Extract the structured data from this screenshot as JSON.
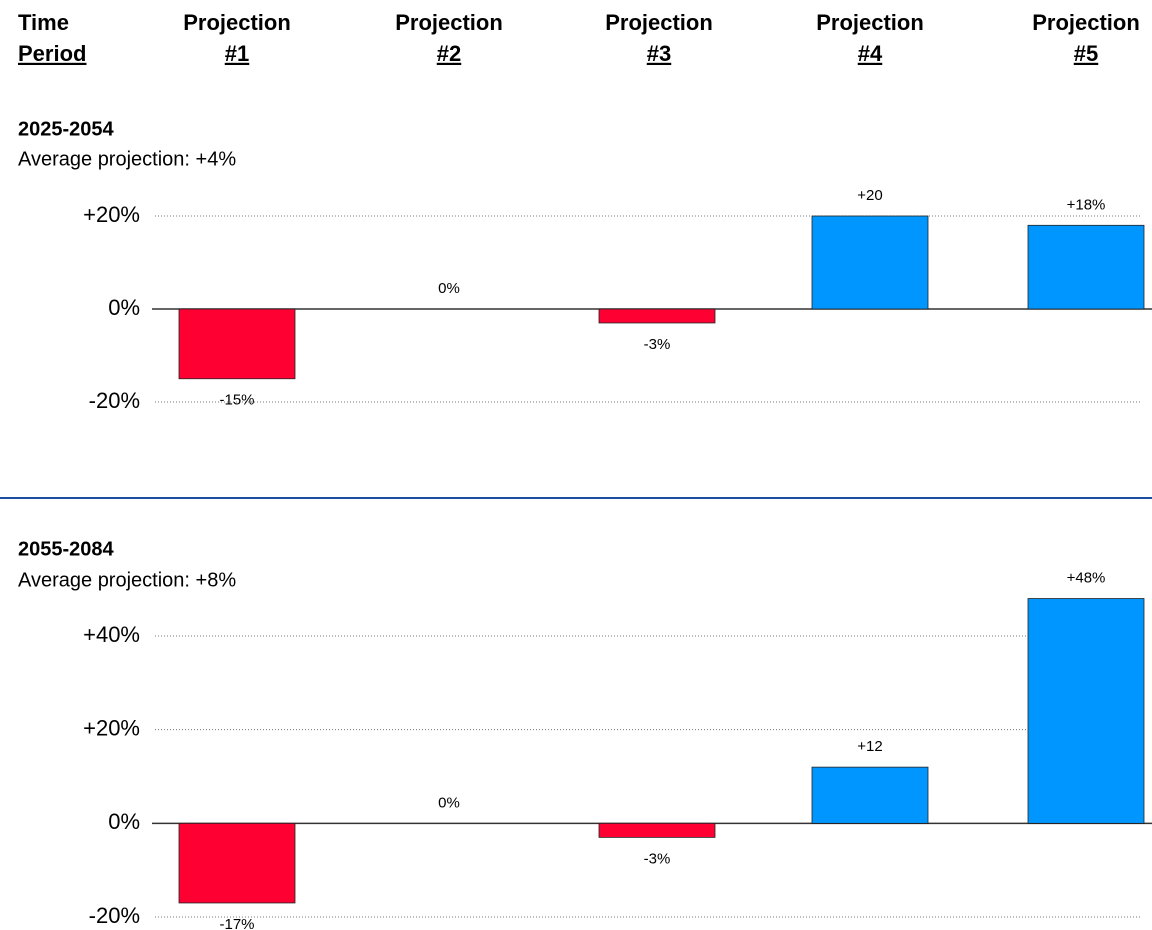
{
  "header": {
    "columns": [
      {
        "line1": "Time",
        "line2": "Period"
      },
      {
        "line1": "Projection",
        "line2": "#1"
      },
      {
        "line1": "Projection",
        "line2": "#2"
      },
      {
        "line1": "Projection",
        "line2": "#3"
      },
      {
        "line1": "Projection",
        "line2": "#4"
      },
      {
        "line1": "Projection",
        "line2": "#5"
      }
    ]
  },
  "chart_data": [
    {
      "type": "bar",
      "title": "2025-2054",
      "subtitle": "Average projection: +4%",
      "values": [
        -15,
        0,
        -3,
        20,
        18
      ],
      "value_labels": [
        "-15%",
        "0%",
        "-3%",
        "+20",
        "+18%"
      ],
      "colors": [
        "#ff0033",
        "#0096ff",
        "#ff0033",
        "#0096ff",
        "#0096ff"
      ],
      "ylim": [
        -20,
        20
      ],
      "yticks": [
        {
          "value": 20,
          "label": "+20%"
        },
        {
          "value": 0,
          "label": "0%"
        },
        {
          "value": -20,
          "label": "-20%"
        }
      ],
      "grid": true
    },
    {
      "type": "bar",
      "title": "2055-2084",
      "subtitle": "Average projection: +8%",
      "values": [
        -17,
        0,
        -3,
        12,
        48
      ],
      "value_labels": [
        "-17%",
        "0%",
        "-3%",
        "+12",
        "+48%"
      ],
      "colors": [
        "#ff0033",
        "#0096ff",
        "#ff0033",
        "#0096ff",
        "#0096ff"
      ],
      "ylim": [
        -20,
        40
      ],
      "yticks": [
        {
          "value": 40,
          "label": "+40%"
        },
        {
          "value": 20,
          "label": "+20%"
        },
        {
          "value": 0,
          "label": "0%"
        },
        {
          "value": -20,
          "label": "-20%"
        }
      ],
      "grid": true
    }
  ]
}
